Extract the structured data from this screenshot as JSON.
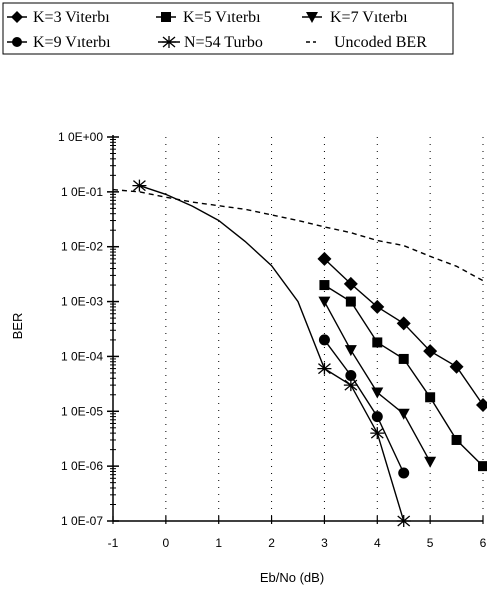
{
  "chart_data": {
    "type": "line",
    "title": "",
    "xlabel": "Eb/No  (dB)",
    "ylabel": "BER",
    "x_scale": "linear",
    "y_scale": "log",
    "xlim": [
      -1,
      6
    ],
    "ylim": [
      1e-07,
      1
    ],
    "x_ticks": [
      "-1",
      "0",
      "1",
      "2",
      "3",
      "4",
      "5",
      "6"
    ],
    "y_ticks": [
      "1 0E+00",
      "1 0E-01",
      "1 0E-02",
      "1 0E-03",
      "1 0E-04",
      "1 0E-05",
      "1 0E-06",
      "1 0E-07"
    ],
    "grid": "vertical dotted",
    "legend_position": "top, boxed above plot",
    "series": [
      {
        "name": "K=3 Viterbı",
        "marker": "diamond",
        "line": "solid",
        "x": [
          3,
          3.5,
          4,
          4.5,
          5,
          5.5,
          6
        ],
        "y": [
          0.006,
          0.0021,
          0.0008,
          0.0004,
          0.000125,
          6.5e-05,
          1.3e-05
        ]
      },
      {
        "name": "K=5 Vıterbı",
        "marker": "square",
        "line": "solid",
        "x": [
          3,
          3.5,
          4,
          4.5,
          5,
          5.5,
          6
        ],
        "y": [
          0.002,
          0.001,
          0.00018,
          9e-05,
          1.8e-05,
          3e-06,
          1e-06
        ]
      },
      {
        "name": "K=7 Vıterbı",
        "marker": "triangle-down",
        "line": "solid",
        "x": [
          3,
          3.5,
          4,
          4.5,
          5
        ],
        "y": [
          0.001,
          0.00013,
          2.2e-05,
          9e-06,
          1.2e-06
        ]
      },
      {
        "name": "K=9 Vıterbı",
        "marker": "circle",
        "line": "solid",
        "x": [
          3,
          3.5,
          4,
          4.5
        ],
        "y": [
          0.0002,
          4.5e-05,
          8e-06,
          7.5e-07
        ]
      },
      {
        "name": "N=54 Turbo",
        "marker": "asterisk",
        "line": "solid",
        "x": [
          -0.5,
          0,
          0.5,
          1,
          1.5,
          2,
          2.5,
          3,
          3.5,
          4,
          4.5
        ],
        "y": [
          0.13,
          0.09,
          0.055,
          0.03,
          0.0125,
          0.0045,
          0.001,
          6e-05,
          3e-05,
          4e-06,
          1e-07
        ],
        "marked_x": [
          -0.5,
          3,
          3.5,
          4,
          4.5
        ]
      },
      {
        "name": "Uncoded BER",
        "marker": "none",
        "line": "dashed",
        "x": [
          -1,
          -0.5,
          0,
          0.5,
          1,
          1.5,
          2,
          2.5,
          3,
          3.5,
          4,
          4.5,
          5,
          5.5,
          6
        ],
        "y": [
          0.11,
          0.1,
          0.08,
          0.065,
          0.056,
          0.048,
          0.038,
          0.03,
          0.023,
          0.018,
          0.013,
          0.0105,
          0.0067,
          0.0044,
          0.0024
        ]
      }
    ]
  },
  "colors": {
    "ink": "#000000",
    "background": "#ffffff"
  }
}
